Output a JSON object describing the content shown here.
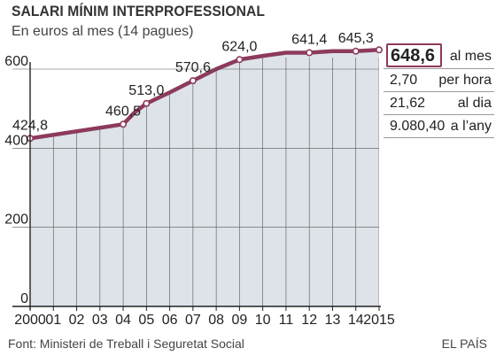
{
  "header": {
    "title": "SALARI MÍNIM INTERPROFESSIONAL",
    "subtitle": "En euros al mes (14 pagues)"
  },
  "footer": {
    "source": "Font: Ministeri de Treball i Seguretat Social",
    "brand": "EL PAÍS"
  },
  "stats": [
    {
      "value": "648,6",
      "unit": "al mes"
    },
    {
      "value": "2,70",
      "unit": "per hora"
    },
    {
      "value": "21,62",
      "unit": "al dia"
    },
    {
      "value": "9.080,40",
      "unit": "a l’any"
    }
  ],
  "colors": {
    "line": "#8d3a5c",
    "area": "#dde3e8",
    "grid": "#555555"
  },
  "chart_data": {
    "type": "area",
    "title": "SALARI MÍNIM INTERPROFESSIONAL",
    "subtitle": "En euros al mes (14 pagues)",
    "xlim": [
      2000,
      2015
    ],
    "ylim": [
      0,
      660
    ],
    "yticks": [
      0,
      200,
      400,
      600
    ],
    "ytick_labels": [
      "0",
      "200",
      "400",
      "600"
    ],
    "xticks": [
      2000,
      2001,
      2002,
      2003,
      2004,
      2005,
      2006,
      2007,
      2008,
      2009,
      2010,
      2011,
      2012,
      2013,
      2014,
      2015
    ],
    "xtick_labels": [
      "2000",
      "01",
      "02",
      "03",
      "04",
      "05",
      "06",
      "07",
      "08",
      "09",
      "10",
      "11",
      "12",
      "13",
      "14",
      "2015"
    ],
    "grid": true,
    "series": [
      {
        "x": [
          2000,
          2004,
          2004.5,
          2005,
          2006,
          2007,
          2008,
          2009,
          2010,
          2011,
          2012,
          2013,
          2014,
          2015
        ],
        "y": [
          424.8,
          460.5,
          490.8,
          513.0,
          540.9,
          570.6,
          600.0,
          624.0,
          633.3,
          641.4,
          641.4,
          645.3,
          645.3,
          648.6
        ]
      }
    ],
    "labeled_points": [
      {
        "x": 2000,
        "y": 424.8,
        "label": "424,8"
      },
      {
        "x": 2004,
        "y": 460.5,
        "label": "460,5"
      },
      {
        "x": 2005,
        "y": 513.0,
        "label": "513,0"
      },
      {
        "x": 2007,
        "y": 570.6,
        "label": "570,6"
      },
      {
        "x": 2009,
        "y": 624.0,
        "label": "624,0"
      },
      {
        "x": 2012,
        "y": 641.4,
        "label": "641,4"
      },
      {
        "x": 2014,
        "y": 645.3,
        "label": "645,3"
      },
      {
        "x": 2015,
        "y": 648.6,
        "label": "648,6"
      }
    ]
  }
}
